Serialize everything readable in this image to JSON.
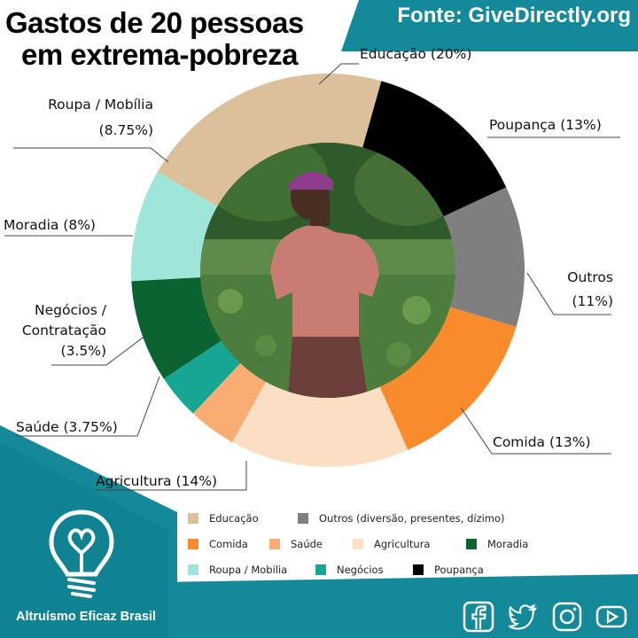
{
  "header": {
    "title_line1": "Gastos de 20 pessoas",
    "title_line2": "em extrema-pobreza",
    "source": "Fonte: GiveDirectly.org"
  },
  "colors": {
    "teal": "#13899a",
    "teal_dark": "#0c6f7f",
    "educacao": "#dcc09c",
    "poupanca": "#000000",
    "outros": "#7f7f7f",
    "comida": "#f88c2c",
    "agricultura": "#fbdfc4",
    "saude": "#f9ad72",
    "negocios": "#17a594",
    "moradia": "#0b6331",
    "roupa": "#9ee6da"
  },
  "chart_data": {
    "type": "donut",
    "categories": [
      "Educação",
      "Poupança",
      "Outros",
      "Comida",
      "Agricultura",
      "Saúde",
      "Negócios / Contratação",
      "Moradia",
      "Roupa / Mobília"
    ],
    "values": [
      20,
      13,
      11,
      13,
      14,
      3.75,
      3.5,
      8,
      8.75
    ],
    "unit": "%"
  },
  "labels": {
    "educacao": "Educação (20%)",
    "poupanca": "Poupança (13%)",
    "outros_1": "Outros",
    "outros_2": "(11%)",
    "comida": "Comida (13%)",
    "agricultura": "Agricultura (14%)",
    "saude": "Saúde (3.75%)",
    "negocios_1": "Negócios /",
    "negocios_2": "Contratação",
    "negocios_3": "(3.5%)",
    "moradia": "Moradia (8%)",
    "roupa_1": "Roupa / Mobília",
    "roupa_2": "(8.75%)"
  },
  "legend": {
    "educacao": "Educação",
    "outros": "Outros (diversão, presentes, dízimo)",
    "comida": "Comida",
    "saude": "Saúde",
    "agricultura": "Agricultura",
    "moradia": "Moradia",
    "roupa": "Roupa / Mobilia",
    "negocios": "Negócios",
    "poupanca": "Poupança"
  },
  "footer": {
    "brand": "Altruísmo Eficaz Brasil"
  }
}
